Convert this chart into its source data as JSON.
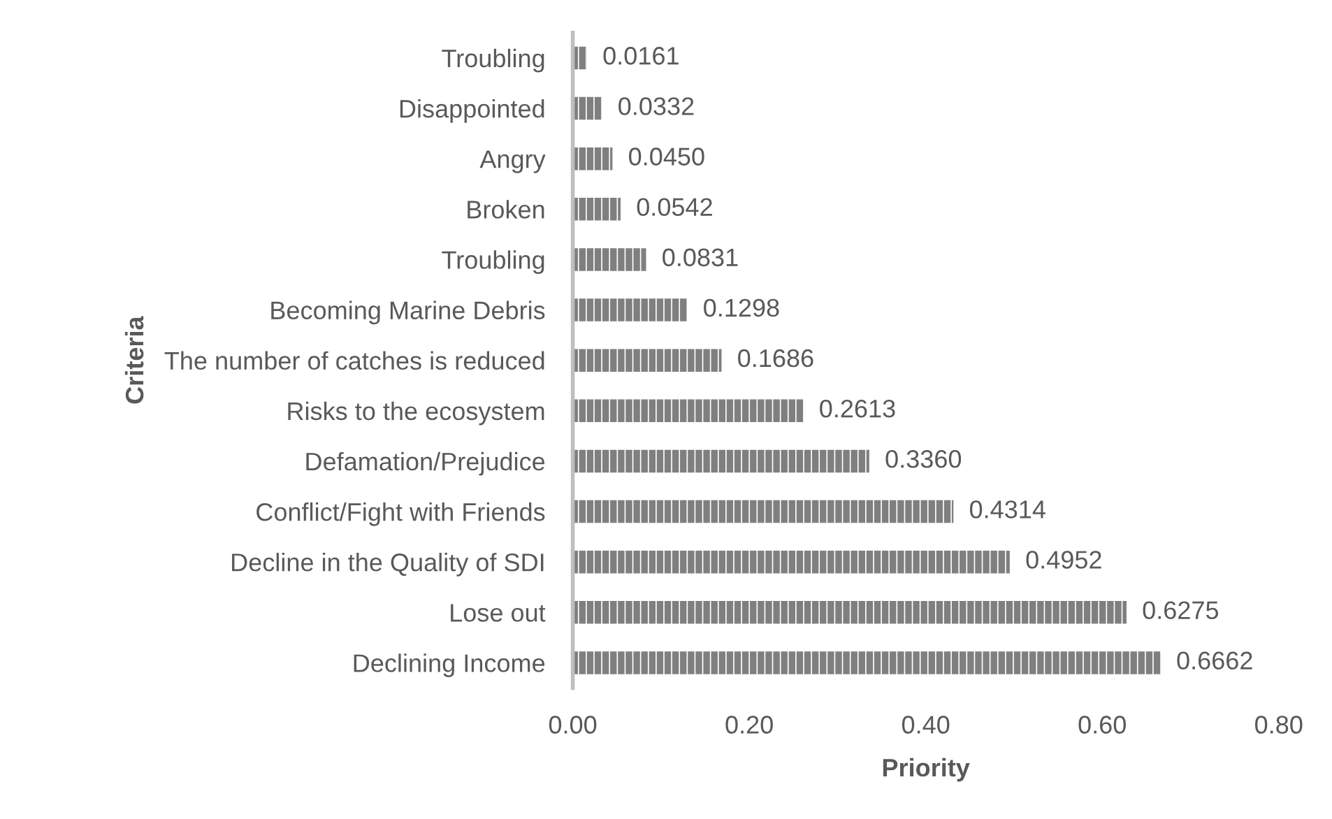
{
  "chart_data": {
    "type": "bar",
    "orientation": "horizontal",
    "xlabel": "Priority",
    "ylabel": "Criteria",
    "categories": [
      "Troubling",
      "Disappointed",
      "Angry",
      "Broken",
      "Troubling",
      "Becoming Marine Debris",
      "The number of catches is reduced",
      "Risks to the ecosystem",
      "Defamation/Prejudice",
      "Conflict/Fight with Friends",
      "Decline in the Quality of SDI",
      "Lose out",
      "Declining Income"
    ],
    "values": [
      0.0161,
      0.0332,
      0.045,
      0.0542,
      0.0831,
      0.1298,
      0.1686,
      0.2613,
      0.336,
      0.4314,
      0.4952,
      0.6275,
      0.6662
    ],
    "value_labels": [
      "0.0161",
      "0.0332",
      "0.0450",
      "0.0542",
      "0.0831",
      "0.1298",
      "0.1686",
      "0.2613",
      "0.3360",
      "0.4314",
      "0.4952",
      "0.6275",
      "0.6662"
    ],
    "color": "#7f7f7f",
    "xlim": [
      0,
      0.8
    ],
    "xticks": [
      {
        "value": 0,
        "label": "0.00"
      },
      {
        "value": 0.2,
        "label": "0.20"
      },
      {
        "value": 0.4,
        "label": "0.40"
      },
      {
        "value": 0.6,
        "label": "0.60"
      },
      {
        "value": 0.8,
        "label": "0.80"
      }
    ],
    "grid": false,
    "legend": false
  }
}
